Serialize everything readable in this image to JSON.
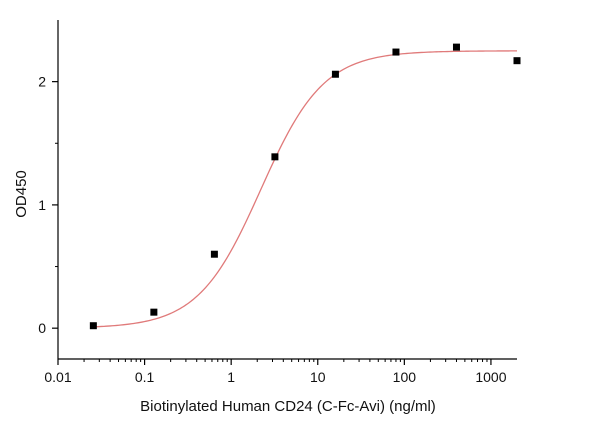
{
  "chart_data": {
    "type": "scatter",
    "xlabel": "Biotinylated Human CD24 (C-Fc-Avi) (ng/ml)",
    "ylabel": "OD450",
    "x_scale": "log",
    "xlim": [
      0.01,
      2000
    ],
    "ylim": [
      -0.25,
      2.5
    ],
    "x_ticks": [
      {
        "value": 0.01,
        "label": "0.01"
      },
      {
        "value": 0.1,
        "label": "0.1"
      },
      {
        "value": 1,
        "label": "1"
      },
      {
        "value": 10,
        "label": "10"
      },
      {
        "value": 100,
        "label": "100"
      },
      {
        "value": 1000,
        "label": "1000"
      }
    ],
    "y_ticks": [
      {
        "value": 0,
        "label": "0"
      },
      {
        "value": 1,
        "label": "1"
      },
      {
        "value": 2,
        "label": "2"
      }
    ],
    "points": [
      {
        "x": 0.0256,
        "y": 0.02
      },
      {
        "x": 0.128,
        "y": 0.13
      },
      {
        "x": 0.64,
        "y": 0.6
      },
      {
        "x": 3.2,
        "y": 1.39
      },
      {
        "x": 16,
        "y": 2.06
      },
      {
        "x": 80,
        "y": 2.24
      },
      {
        "x": 400,
        "y": 2.28
      },
      {
        "x": 2000,
        "y": 2.17
      }
    ],
    "fit_curve": {
      "model": "4PL",
      "bottom": 0.0,
      "top": 2.25,
      "ec50": 2.2,
      "hill": 1.2
    },
    "colors": {
      "points": "#000000",
      "curve": "#e07a7a",
      "axis": "#000000"
    },
    "grid": false
  }
}
